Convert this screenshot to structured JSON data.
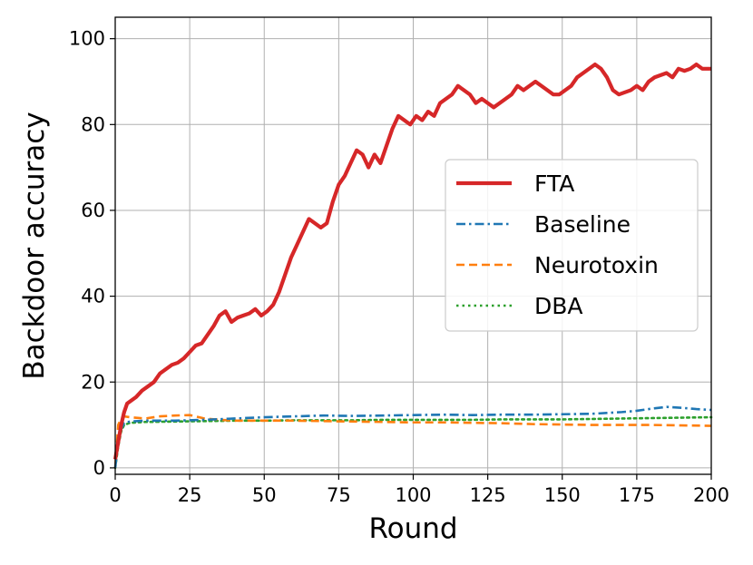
{
  "chart_data": {
    "type": "line",
    "title": "",
    "xlabel": "Round",
    "ylabel": "Backdoor accuracy",
    "xlim": [
      0,
      200
    ],
    "ylim": [
      -1.5,
      105
    ],
    "xticks": [
      0,
      25,
      50,
      75,
      100,
      125,
      150,
      175,
      200
    ],
    "yticks": [
      0,
      20,
      40,
      60,
      80,
      100
    ],
    "grid": true,
    "legend_position": "center-right",
    "series": [
      {
        "name": "FTA",
        "color": "#d62728",
        "style": "solid",
        "x": [
          0,
          1,
          2,
          3,
          4,
          5,
          7,
          9,
          11,
          13,
          15,
          17,
          19,
          21,
          23,
          25,
          27,
          29,
          31,
          33,
          35,
          37,
          39,
          41,
          43,
          45,
          47,
          49,
          51,
          53,
          55,
          57,
          59,
          61,
          63,
          65,
          67,
          69,
          71,
          73,
          75,
          77,
          79,
          81,
          83,
          85,
          87,
          89,
          91,
          93,
          95,
          97,
          99,
          101,
          103,
          105,
          107,
          109,
          111,
          113,
          115,
          117,
          119,
          121,
          123,
          125,
          127,
          129,
          131,
          133,
          135,
          137,
          139,
          141,
          143,
          145,
          147,
          149,
          151,
          153,
          155,
          157,
          159,
          161,
          163,
          165,
          167,
          169,
          171,
          173,
          175,
          177,
          179,
          181,
          183,
          185,
          187,
          189,
          191,
          193,
          195,
          197,
          199,
          200
        ],
        "y": [
          2,
          6,
          10,
          13,
          15,
          15.5,
          16.5,
          18,
          19,
          20,
          22,
          23,
          24,
          24.5,
          25.5,
          27,
          28.5,
          29,
          31,
          33,
          35.5,
          36.5,
          34,
          35,
          35.5,
          36,
          37,
          35.5,
          36.5,
          38,
          41,
          45,
          49,
          52,
          55,
          58,
          57,
          56,
          57,
          62,
          66,
          68,
          71,
          74,
          73,
          70,
          73,
          71,
          75,
          79,
          82,
          81,
          80,
          82,
          81,
          83,
          82,
          85,
          86,
          87,
          89,
          88,
          87,
          85,
          86,
          85,
          84,
          85,
          86,
          87,
          89,
          88,
          89,
          90,
          89,
          88,
          87,
          87,
          88,
          89,
          91,
          92,
          93,
          94,
          93,
          91,
          88,
          87,
          87.5,
          88,
          89,
          88,
          90,
          91,
          91.5,
          92,
          91,
          93,
          92.5,
          93,
          94,
          93,
          93,
          93
        ]
      },
      {
        "name": "Baseline",
        "color": "#1f77b4",
        "style": "dashdot",
        "x": [
          0,
          1,
          2,
          3,
          5,
          10,
          20,
          30,
          40,
          50,
          60,
          70,
          80,
          90,
          100,
          110,
          120,
          130,
          140,
          150,
          160,
          165,
          170,
          175,
          180,
          185,
          190,
          195,
          200
        ],
        "y": [
          0,
          6,
          9,
          10.5,
          10.8,
          11,
          11,
          11.2,
          11.5,
          11.8,
          12,
          12.2,
          12.1,
          12.2,
          12.3,
          12.4,
          12.3,
          12.4,
          12.4,
          12.5,
          12.6,
          12.8,
          13,
          13.3,
          13.8,
          14.2,
          14,
          13.7,
          13.5
        ]
      },
      {
        "name": "Neurotoxin",
        "color": "#ff7f0e",
        "style": "dashed",
        "x": [
          0,
          1,
          2,
          3,
          5,
          10,
          15,
          20,
          25,
          30,
          35,
          40,
          50,
          60,
          70,
          80,
          90,
          100,
          110,
          120,
          130,
          140,
          150,
          160,
          170,
          180,
          190,
          200
        ],
        "y": [
          0,
          10,
          11.5,
          12,
          11.8,
          11.5,
          12,
          12.2,
          12.3,
          11.5,
          11.2,
          11,
          11,
          11,
          10.9,
          10.8,
          10.7,
          10.6,
          10.6,
          10.5,
          10.4,
          10.2,
          10.1,
          10,
          10,
          10,
          9.9,
          9.8
        ]
      },
      {
        "name": "DBA",
        "color": "#2ca02c",
        "style": "dotted",
        "x": [
          0,
          1,
          2,
          3,
          5,
          10,
          20,
          30,
          40,
          50,
          60,
          70,
          80,
          90,
          100,
          110,
          120,
          130,
          140,
          150,
          160,
          170,
          180,
          190,
          200
        ],
        "y": [
          0,
          5,
          8.5,
          10,
          10.5,
          10.7,
          10.8,
          10.9,
          11,
          11,
          11.1,
          11.1,
          11.1,
          11.2,
          11.2,
          11.2,
          11.2,
          11.3,
          11.3,
          11.3,
          11.4,
          11.5,
          11.6,
          11.7,
          11.8
        ]
      }
    ]
  }
}
